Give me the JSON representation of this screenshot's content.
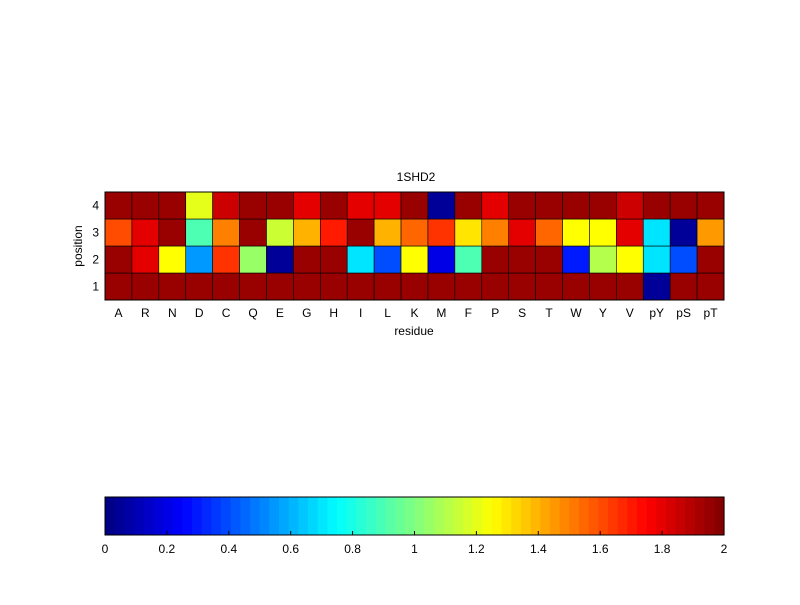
{
  "chart_data": {
    "type": "heatmap",
    "title": "1SHD2",
    "xlabel": "residue",
    "ylabel": "position",
    "x_categories": [
      "A",
      "R",
      "N",
      "D",
      "C",
      "Q",
      "E",
      "G",
      "H",
      "I",
      "L",
      "K",
      "M",
      "F",
      "P",
      "S",
      "T",
      "W",
      "Y",
      "V",
      "pY",
      "pS",
      "pT"
    ],
    "y_categories": [
      "1",
      "2",
      "3",
      "4"
    ],
    "values": [
      [
        1.95,
        1.95,
        1.95,
        1.95,
        1.95,
        1.95,
        1.95,
        1.95,
        1.95,
        1.95,
        1.95,
        1.95,
        1.95,
        1.95,
        1.95,
        1.95,
        1.95,
        1.95,
        1.95,
        1.95,
        0.05,
        1.95,
        1.95
      ],
      [
        1.95,
        1.8,
        1.25,
        0.55,
        1.65,
        1.05,
        0.05,
        1.95,
        1.95,
        0.7,
        0.4,
        1.25,
        0.2,
        0.9,
        1.95,
        1.95,
        1.95,
        0.3,
        1.1,
        1.25,
        0.7,
        0.4,
        1.95
      ],
      [
        1.6,
        1.8,
        1.95,
        0.9,
        1.5,
        1.95,
        1.15,
        1.4,
        1.7,
        1.95,
        1.4,
        1.55,
        1.65,
        1.3,
        1.5,
        1.8,
        1.55,
        1.25,
        1.25,
        1.8,
        0.7,
        0.05,
        1.45
      ],
      [
        1.95,
        1.95,
        1.95,
        1.2,
        1.85,
        1.95,
        1.95,
        1.8,
        1.95,
        1.8,
        1.8,
        1.95,
        0.05,
        1.95,
        1.8,
        1.95,
        1.95,
        1.95,
        1.95,
        1.85,
        1.95,
        1.95,
        1.95
      ]
    ],
    "colorbar": {
      "colormap": "jet",
      "range": [
        0,
        2
      ],
      "ticks": [
        "0",
        "0.2",
        "0.4",
        "0.6",
        "0.8",
        "1",
        "1.2",
        "1.4",
        "1.6",
        "1.8",
        "2"
      ]
    }
  }
}
